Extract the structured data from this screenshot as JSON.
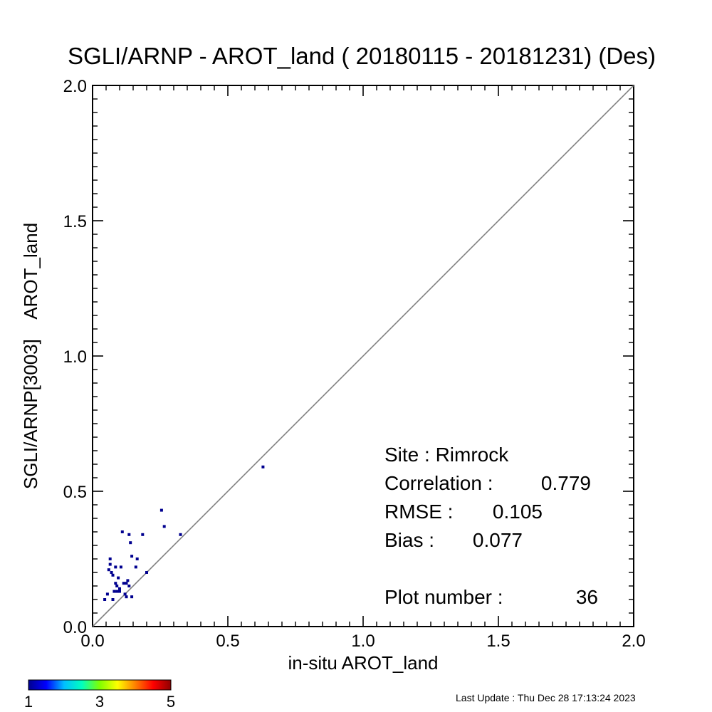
{
  "chart_data": {
    "type": "scatter",
    "title": "SGLI/ARNP - AROT_land ( 20180115 - 20181231) (Des)",
    "xlabel": "in-situ AROT_land",
    "ylabel": "SGLI/ARNP[3003]    AROT_land",
    "xlim": [
      0,
      2
    ],
    "ylim": [
      0,
      2
    ],
    "xticks": [
      "0.0",
      "0.5",
      "1.0",
      "1.5",
      "2.0"
    ],
    "yticks": [
      "0.0",
      "0.5",
      "1.0",
      "1.5",
      "2.0"
    ],
    "grid": false,
    "reference_line": "1:1",
    "point_color": "#00008f",
    "points": [
      [
        0.045,
        0.1
      ],
      [
        0.055,
        0.12
      ],
      [
        0.06,
        0.21
      ],
      [
        0.065,
        0.25
      ],
      [
        0.065,
        0.23
      ],
      [
        0.07,
        0.2
      ],
      [
        0.075,
        0.19
      ],
      [
        0.075,
        0.1
      ],
      [
        0.08,
        0.13
      ],
      [
        0.085,
        0.22
      ],
      [
        0.085,
        0.16
      ],
      [
        0.09,
        0.15
      ],
      [
        0.09,
        0.13
      ],
      [
        0.095,
        0.18
      ],
      [
        0.1,
        0.14
      ],
      [
        0.1,
        0.13
      ],
      [
        0.105,
        0.22
      ],
      [
        0.11,
        0.35
      ],
      [
        0.12,
        0.12
      ],
      [
        0.125,
        0.16
      ],
      [
        0.125,
        0.11
      ],
      [
        0.13,
        0.17
      ],
      [
        0.135,
        0.15
      ],
      [
        0.135,
        0.34
      ],
      [
        0.14,
        0.31
      ],
      [
        0.145,
        0.11
      ],
      [
        0.145,
        0.26
      ],
      [
        0.16,
        0.22
      ],
      [
        0.165,
        0.25
      ],
      [
        0.185,
        0.34
      ],
      [
        0.2,
        0.2
      ],
      [
        0.255,
        0.43
      ],
      [
        0.265,
        0.37
      ],
      [
        0.325,
        0.34
      ],
      [
        0.63,
        0.59
      ],
      [
        0.115,
        0.16
      ]
    ],
    "stats": {
      "site": "Site : Rimrock",
      "correlation_label": "Correlation :",
      "correlation": "0.779",
      "rmse_label": "RMSE :",
      "rmse": "0.105",
      "bias_label": "Bias :",
      "bias": "0.077",
      "plot_number_label": "Plot number :",
      "plot_number": "36"
    },
    "colorbar": {
      "ticks": [
        "1",
        "3",
        "5"
      ],
      "colors": [
        "#00008f",
        "#0000ff",
        "#00bfff",
        "#00ffbf",
        "#80ff00",
        "#ffff00",
        "#ff8000",
        "#ff0000",
        "#8f0000"
      ]
    }
  },
  "footer": {
    "last_update": "Last Update : Thu Dec 28 17:13:24 2023"
  }
}
